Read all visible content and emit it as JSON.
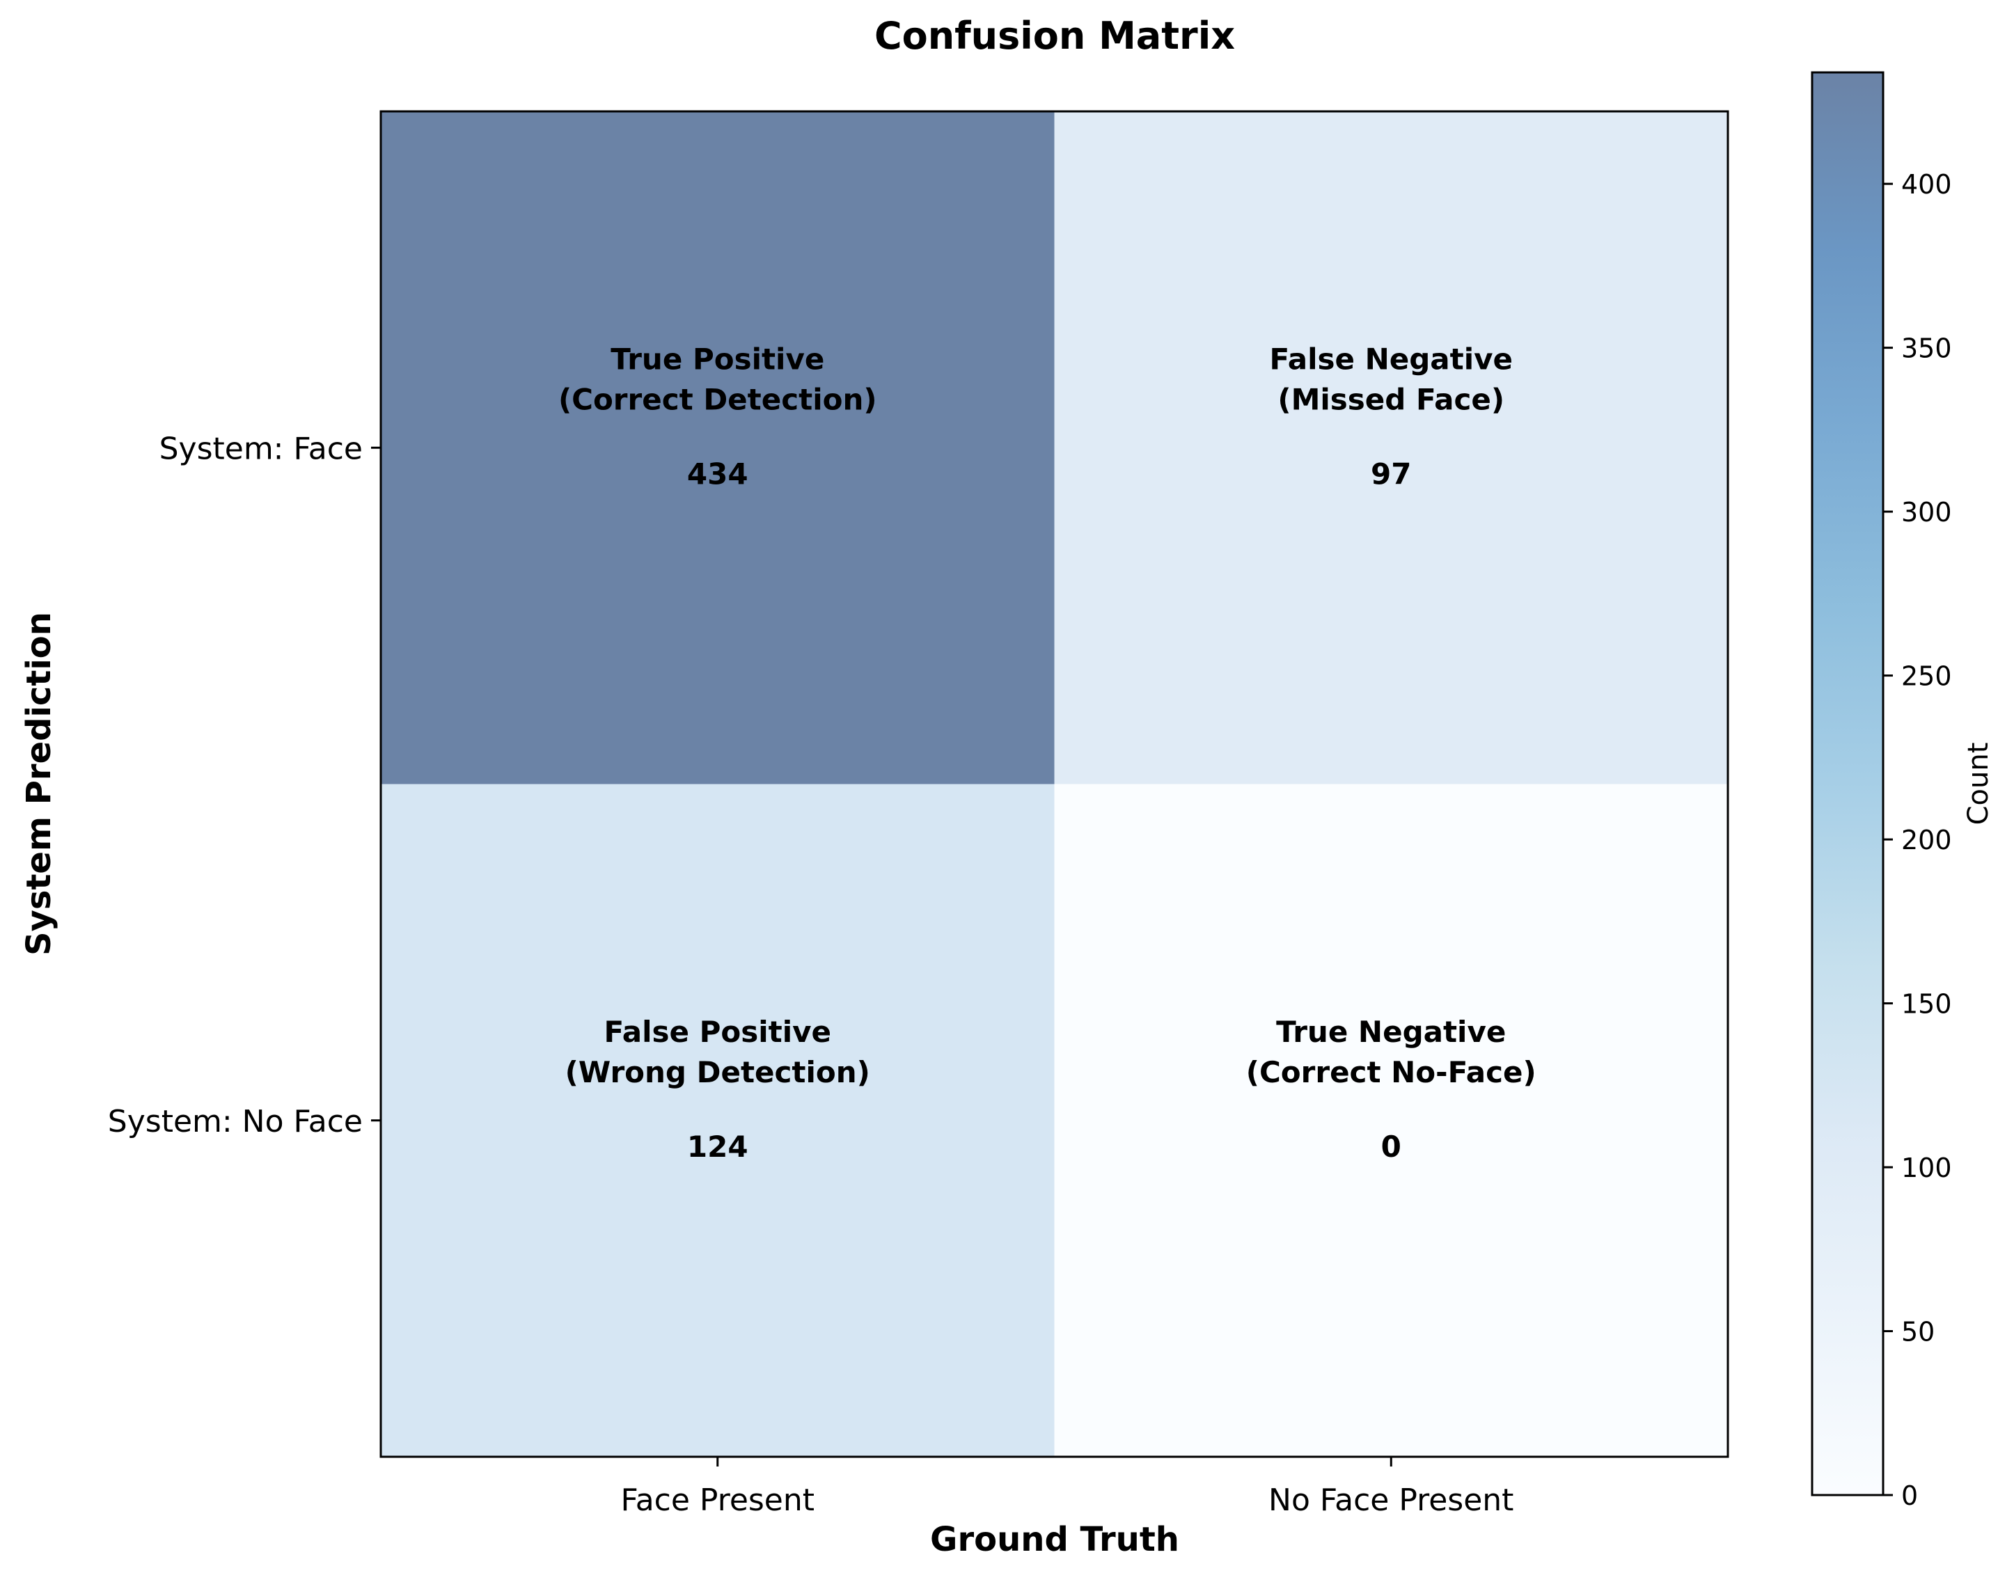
{
  "chart_data": {
    "type": "heatmap",
    "title": "Confusion Matrix",
    "xlabel": "Ground Truth",
    "ylabel": "System Prediction",
    "x_categories": [
      "Face Present",
      "No Face Present"
    ],
    "y_categories": [
      "System: Face",
      "System: No Face"
    ],
    "cells": [
      [
        {
          "label_line1": "True Positive",
          "label_line2": "(Correct Detection)",
          "value": 434
        },
        {
          "label_line1": "False Negative",
          "label_line2": "(Missed Face)",
          "value": 97
        }
      ],
      [
        {
          "label_line1": "False Positive",
          "label_line2": "(Wrong Detection)",
          "value": 124
        },
        {
          "label_line1": "True Negative",
          "label_line2": "(Correct No-Face)",
          "value": 0
        }
      ]
    ],
    "colorbar": {
      "label": "Count",
      "range": [
        0,
        434
      ],
      "ticks": [
        0,
        50,
        100,
        150,
        200,
        250,
        300,
        350,
        400
      ],
      "colormap": "Blues",
      "alpha": 0.6
    },
    "grid": false
  }
}
